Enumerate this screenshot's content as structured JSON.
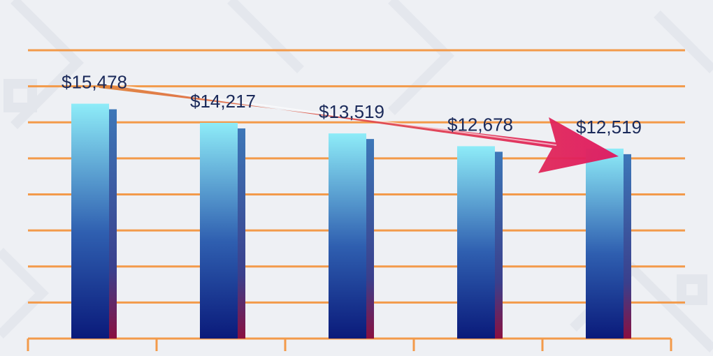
{
  "chart_data": {
    "type": "bar",
    "title": "",
    "xlabel": "",
    "ylabel": "",
    "categories": [
      "",
      "",
      "",
      "",
      ""
    ],
    "values": [
      15478,
      14217,
      13519,
      12678,
      12519
    ],
    "value_labels": [
      "$15,478",
      "$14,217",
      "$13,519",
      "$12,678",
      "$12,519"
    ],
    "ylim": [
      0,
      19000
    ],
    "grid": true,
    "legend": "none",
    "trend_arrow": true
  },
  "colors": {
    "background": "#eef0f4",
    "gridline": "#f39a4a",
    "bar_top": "#8eecf8",
    "bar_bottom": "#0a1a7a",
    "bar_side_top": "#3d77b8",
    "bar_side_bottom": "#8a1040",
    "arrow_start": "#e0843a",
    "arrow_end": "#e0175f",
    "label": "#1b2a5a"
  }
}
